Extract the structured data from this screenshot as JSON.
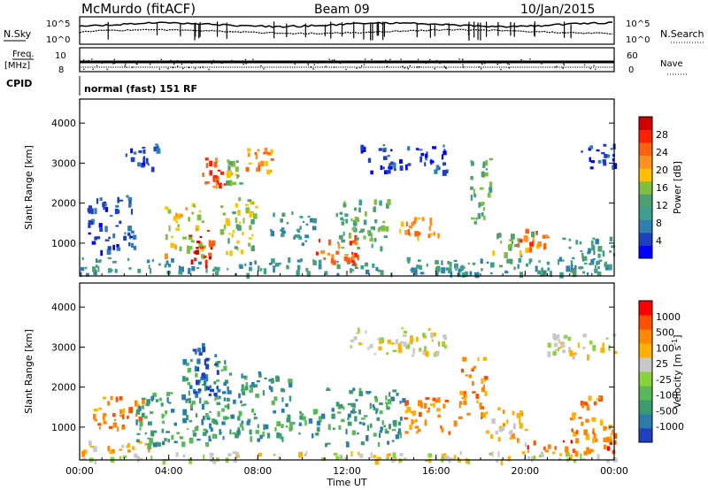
{
  "header": {
    "station": "McMurdo (fitACF)",
    "beam": "Beam 09",
    "date": "10/Jan/2015"
  },
  "top_panels": {
    "nsky_label": "N.Sky",
    "nsky_ticks": [
      "10^5",
      "10^0"
    ],
    "nsearch_label": "N.Search",
    "nsearch_ticks": [
      "10^5",
      "10^0"
    ],
    "freq_label": "Freq.",
    "freq_unit": "[MHz]",
    "freq_ticks": [
      "10",
      "8"
    ],
    "nave_label": "Nave",
    "nave_ticks": [
      "60",
      "0"
    ],
    "cpid_label": "CPID",
    "cpid_value": "normal (fast) 151 RF"
  },
  "chart_data": [
    {
      "type": "heatmap",
      "panel": "power",
      "ylabel": "Slant Range [km]",
      "ylim": [
        180,
        4600
      ],
      "yticks": [
        "1000",
        "2000",
        "3000",
        "4000"
      ],
      "xlim": [
        "00:00",
        "24:00"
      ],
      "colorbar_label": "Power [dB]",
      "colorbar_ticks": [
        "28",
        "24",
        "20",
        "16",
        "12",
        "8",
        "4"
      ],
      "colors": [
        "#0000ff",
        "#1f3fc2",
        "#2f7fb0",
        "#3f9f8f",
        "#4fa070",
        "#7fbf3f",
        "#ffc000",
        "#ff9020",
        "#ff6010",
        "#ff2000",
        "#d00000"
      ],
      "regions": [
        {
          "start_h": 0.0,
          "end_h": 24.0,
          "r_min": 250,
          "r_max": 650,
          "level": 3
        },
        {
          "start_h": 0.3,
          "end_h": 2.5,
          "r_min": 800,
          "r_max": 2200,
          "level": 1
        },
        {
          "start_h": 2.0,
          "end_h": 3.5,
          "r_min": 2900,
          "r_max": 3500,
          "level": 1
        },
        {
          "start_h": 3.8,
          "end_h": 5.5,
          "r_min": 700,
          "r_max": 2000,
          "level": 6
        },
        {
          "start_h": 4.8,
          "end_h": 6.0,
          "r_min": 500,
          "r_max": 1400,
          "level": 9
        },
        {
          "start_h": 5.5,
          "end_h": 6.5,
          "r_min": 2400,
          "r_max": 3200,
          "level": 8
        },
        {
          "start_h": 6.3,
          "end_h": 8.0,
          "r_min": 800,
          "r_max": 2200,
          "level": 5
        },
        {
          "start_h": 6.5,
          "end_h": 7.2,
          "r_min": 2500,
          "r_max": 3100,
          "level": 5
        },
        {
          "start_h": 7.4,
          "end_h": 8.6,
          "r_min": 2800,
          "r_max": 3400,
          "level": 7
        },
        {
          "start_h": 8.5,
          "end_h": 10.5,
          "r_min": 1000,
          "r_max": 1800,
          "level": 3
        },
        {
          "start_h": 10.5,
          "end_h": 12.5,
          "r_min": 500,
          "r_max": 1200,
          "level": 8
        },
        {
          "start_h": 11.5,
          "end_h": 14.0,
          "r_min": 900,
          "r_max": 2100,
          "level": 4
        },
        {
          "start_h": 12.5,
          "end_h": 16.5,
          "r_min": 2800,
          "r_max": 3500,
          "level": 1
        },
        {
          "start_h": 14.2,
          "end_h": 16.2,
          "r_min": 1100,
          "r_max": 1700,
          "level": 7
        },
        {
          "start_h": 17.5,
          "end_h": 18.5,
          "r_min": 1500,
          "r_max": 3200,
          "level": 4
        },
        {
          "start_h": 18.5,
          "end_h": 20.5,
          "r_min": 700,
          "r_max": 1300,
          "level": 5
        },
        {
          "start_h": 19.5,
          "end_h": 21.0,
          "r_min": 900,
          "r_max": 1400,
          "level": 8
        },
        {
          "start_h": 21.5,
          "end_h": 24.0,
          "r_min": 400,
          "r_max": 1200,
          "level": 3
        },
        {
          "start_h": 22.5,
          "end_h": 24.0,
          "r_min": 2900,
          "r_max": 3500,
          "level": 1
        }
      ]
    },
    {
      "type": "heatmap",
      "panel": "velocity",
      "ylabel": "Slant Range [km]",
      "xlabel": "Time UT",
      "ylim": [
        180,
        4600
      ],
      "yticks": [
        "1000",
        "2000",
        "3000",
        "4000"
      ],
      "xlim": [
        "00:00",
        "24:00"
      ],
      "xticks": [
        "00:00",
        "04:00",
        "08:00",
        "12:00",
        "16:00",
        "20:00",
        "00:00"
      ],
      "colorbar_label": "Velocity [m s",
      "colorbar_unit_exp": "-1",
      "colorbar_ticks": [
        "1000",
        "500",
        "100",
        "25",
        "-25",
        "-100",
        "-500",
        "-1000"
      ],
      "colors": [
        "#2040c0",
        "#2a7cae",
        "#3a9b6e",
        "#59b859",
        "#8ad23c",
        "#c8c8c8",
        "#ffb000",
        "#ff8800",
        "#ff5000",
        "#ff0000"
      ],
      "regions": [
        {
          "start_h": 0.0,
          "end_h": 24.0,
          "r_min": 180,
          "r_max": 400,
          "level": 5
        },
        {
          "start_h": 0.0,
          "end_h": 3.5,
          "r_min": 400,
          "r_max": 700,
          "level": 6
        },
        {
          "start_h": 0.5,
          "end_h": 2.8,
          "r_min": 1000,
          "r_max": 1800,
          "level": 7
        },
        {
          "start_h": 2.5,
          "end_h": 4.5,
          "r_min": 600,
          "r_max": 1900,
          "level": 2
        },
        {
          "start_h": 4.5,
          "end_h": 7.0,
          "r_min": 600,
          "r_max": 2800,
          "level": 2
        },
        {
          "start_h": 5.0,
          "end_h": 6.2,
          "r_min": 1800,
          "r_max": 3200,
          "level": 0
        },
        {
          "start_h": 7.0,
          "end_h": 9.5,
          "r_min": 700,
          "r_max": 2400,
          "level": 2
        },
        {
          "start_h": 9.5,
          "end_h": 11.0,
          "r_min": 800,
          "r_max": 1500,
          "level": 2
        },
        {
          "start_h": 11.0,
          "end_h": 14.5,
          "r_min": 600,
          "r_max": 2000,
          "level": 2
        },
        {
          "start_h": 12.0,
          "end_h": 16.5,
          "r_min": 2800,
          "r_max": 3500,
          "level": 5
        },
        {
          "start_h": 14.5,
          "end_h": 16.8,
          "r_min": 900,
          "r_max": 1800,
          "level": 7
        },
        {
          "start_h": 17.0,
          "end_h": 18.2,
          "r_min": 1200,
          "r_max": 2800,
          "level": 7
        },
        {
          "start_h": 18.2,
          "end_h": 20.0,
          "r_min": 600,
          "r_max": 1500,
          "level": 6
        },
        {
          "start_h": 20.0,
          "end_h": 24.0,
          "r_min": 400,
          "r_max": 700,
          "level": 8
        },
        {
          "start_h": 21.0,
          "end_h": 24.0,
          "r_min": 2800,
          "r_max": 3400,
          "level": 5
        },
        {
          "start_h": 22.0,
          "end_h": 24.0,
          "r_min": 700,
          "r_max": 1800,
          "level": 7
        }
      ]
    }
  ]
}
